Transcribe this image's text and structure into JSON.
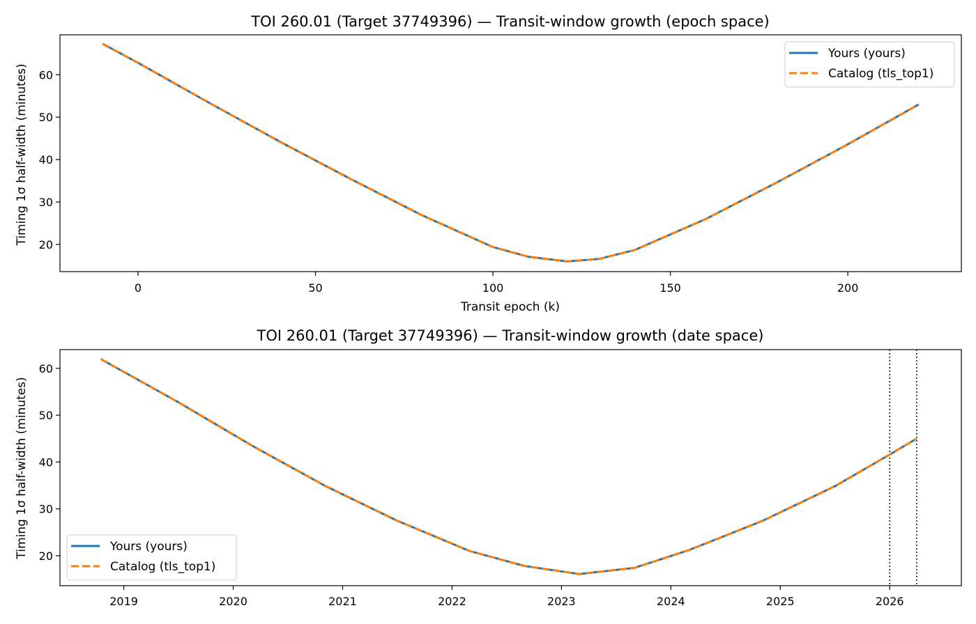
{
  "chart_data": [
    {
      "type": "line",
      "title": "TOI 260.01 (Target 37749396) — Transit-window growth (epoch space)",
      "xlabel": "Transit epoch (k)",
      "ylabel": "Timing 1σ half-width (minutes)",
      "xlim": [
        -22,
        232
      ],
      "ylim": [
        13.6,
        69.4
      ],
      "xticks": [
        0,
        50,
        100,
        150,
        200
      ],
      "yticks": [
        20,
        30,
        40,
        50,
        60
      ],
      "grid": false,
      "legend_position": "top-right",
      "min_point": {
        "x": 121,
        "y": 16
      },
      "series": [
        {
          "name": "Yours (yours)",
          "color": "#1f77b4",
          "style": "solid",
          "x": [
            -10,
            0,
            20,
            40,
            60,
            80,
            100,
            110,
            121,
            130,
            140,
            160,
            180,
            200,
            220
          ],
          "y": [
            67.3,
            62.8,
            53.4,
            44.2,
            35.4,
            26.9,
            19.4,
            17.1,
            16.0,
            16.6,
            18.7,
            26.0,
            34.6,
            43.6,
            53.0
          ]
        },
        {
          "name": "Catalog (tls_top1)",
          "color": "#ff7f0e",
          "style": "dashed",
          "x": [
            -10,
            0,
            20,
            40,
            60,
            80,
            100,
            110,
            121,
            130,
            140,
            160,
            180,
            200,
            220
          ],
          "y": [
            67.3,
            62.8,
            53.4,
            44.2,
            35.4,
            26.9,
            19.4,
            17.1,
            16.0,
            16.6,
            18.7,
            26.0,
            34.6,
            43.6,
            53.0
          ]
        }
      ]
    },
    {
      "type": "line",
      "title": "TOI 260.01 (Target 37749396) — Transit-window growth (date space)",
      "xlabel": "",
      "ylabel": "Timing 1σ half-width (minutes)",
      "xlim": [
        "2018-06-02",
        "2026-08-28"
      ],
      "ylim": [
        13.6,
        64.0
      ],
      "xticks": [
        "2019",
        "2020",
        "2021",
        "2022",
        "2023",
        "2024",
        "2025",
        "2026"
      ],
      "yticks": [
        20,
        30,
        40,
        50,
        60
      ],
      "grid": false,
      "legend_position": "bottom-left",
      "vlines": [
        "2026-01-01",
        "2026-04-01"
      ],
      "series": [
        {
          "name": "Yours (yours)",
          "color": "#1f77b4",
          "style": "solid",
          "x": [
            "2018-10-16",
            "2019-07-01",
            "2020-03-01",
            "2020-11-01",
            "2021-07-01",
            "2022-03-01",
            "2022-09-01",
            "2023-03-01",
            "2023-09-01",
            "2024-03-01",
            "2024-11-01",
            "2025-07-01",
            "2026-01-01",
            "2026-04-01"
          ],
          "y": [
            62.0,
            52.8,
            43.6,
            35.0,
            27.5,
            21.0,
            17.8,
            16.1,
            17.4,
            21.2,
            27.4,
            34.8,
            41.6,
            45.0
          ]
        },
        {
          "name": "Catalog (tls_top1)",
          "color": "#ff7f0e",
          "style": "dashed",
          "x": [
            "2018-10-16",
            "2019-07-01",
            "2020-03-01",
            "2020-11-01",
            "2021-07-01",
            "2022-03-01",
            "2022-09-01",
            "2023-03-01",
            "2023-09-01",
            "2024-03-01",
            "2024-11-01",
            "2025-07-01",
            "2026-01-01",
            "2026-04-01"
          ],
          "y": [
            62.0,
            52.8,
            43.6,
            35.0,
            27.5,
            21.0,
            17.8,
            16.1,
            17.4,
            21.2,
            27.4,
            34.8,
            41.6,
            45.0
          ]
        }
      ]
    }
  ]
}
